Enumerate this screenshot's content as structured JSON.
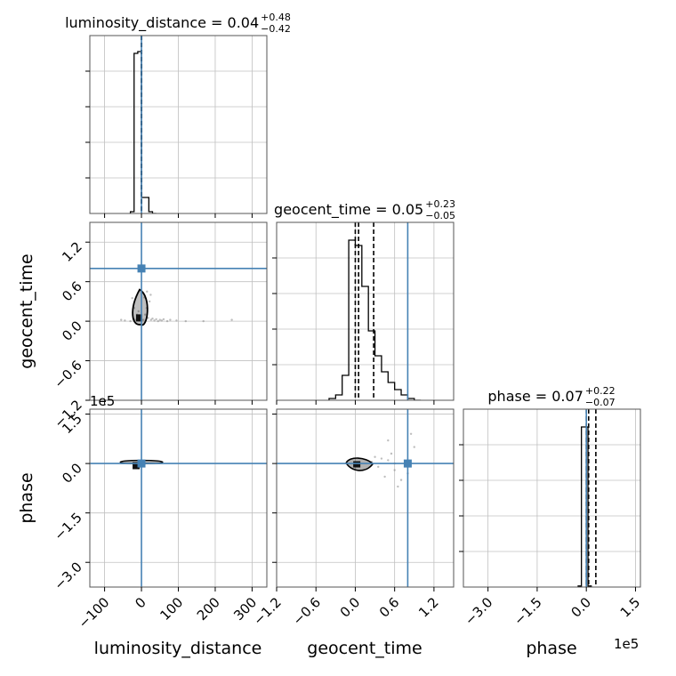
{
  "chart_data": {
    "type": "corner",
    "parameters": [
      "luminosity_distance",
      "geocent_time",
      "phase"
    ],
    "truth": {
      "luminosity_distance": 0,
      "geocent_time": 0.8,
      "phase": 0
    },
    "titles": [
      {
        "param": "luminosity_distance",
        "text": "luminosity_distance = 0.04",
        "upper": "+0.48",
        "lower": "−0.42"
      },
      {
        "param": "geocent_time",
        "text": "geocent_time = 0.05",
        "upper": "+0.23",
        "lower": "−0.05"
      },
      {
        "param": "phase",
        "text": "phase = 0.07",
        "upper": "+0.22",
        "lower": "−0.07"
      }
    ],
    "axes": {
      "luminosity_distance": {
        "range": [
          -140,
          340
        ],
        "ticks": [
          -100,
          0,
          100,
          200,
          300
        ],
        "tick_labels": [
          "−100",
          "0",
          "100",
          "200",
          "300"
        ]
      },
      "geocent_time": {
        "range": [
          -1.2,
          1.5
        ],
        "ticks": [
          -1.2,
          -0.6,
          0.0,
          0.6,
          1.2
        ],
        "tick_labels": [
          "−1.2",
          "−0.6",
          "0.0",
          "0.6",
          "1.2"
        ]
      },
      "phase": {
        "range": [
          -3.75,
          1.65
        ],
        "ticks": [
          -3.0,
          -1.5,
          0.0,
          1.5
        ],
        "tick_labels": [
          "−3.0",
          "−1.5",
          "0.0",
          "1.5"
        ],
        "offset": "1e5"
      }
    },
    "histograms": {
      "luminosity_distance": {
        "bins": [
          -30,
          -20,
          -10,
          0,
          10,
          20,
          30,
          40
        ],
        "counts": [
          0.5,
          45,
          45.5,
          4.5,
          4.5,
          0.5,
          0
        ]
      },
      "geocent_time": {
        "bins": [
          -0.4,
          -0.3,
          -0.2,
          -0.1,
          0.0,
          0.1,
          0.2,
          0.3,
          0.4,
          0.5,
          0.6,
          0.7,
          0.8,
          0.9,
          1.0
        ],
        "counts": [
          0.5,
          1.5,
          7,
          45,
          43.5,
          32,
          19.5,
          12.5,
          8,
          5,
          3,
          1.5,
          0.5,
          0
        ]
      },
      "phase": {
        "bins": [
          -0.25,
          -0.15,
          -0.05,
          0.05,
          0.15
        ],
        "counts": [
          0.3,
          45,
          45,
          0.3
        ]
      }
    },
    "quantile_lines": {
      "luminosity_distance": [
        -0.38,
        0.04,
        0.52
      ],
      "geocent_time": [
        0.0,
        0.05,
        0.28
      ],
      "phase": [
        0.0,
        0.07,
        0.29
      ]
    },
    "histogram_ylim": [
      0,
      50
    ],
    "scatter_points": [
      [
        -55,
        0.02
      ],
      [
        -45,
        0.01
      ],
      [
        -30,
        0.0
      ],
      [
        -22,
        0.04
      ],
      [
        -18,
        0.02
      ],
      [
        -12,
        0.1
      ],
      [
        -8,
        0.15
      ],
      [
        -5,
        0.05
      ],
      [
        5,
        0.02
      ],
      [
        10,
        0.1
      ],
      [
        14,
        0.2
      ],
      [
        18,
        0.05
      ],
      [
        22,
        0.3
      ],
      [
        26,
        0.02
      ],
      [
        30,
        0.04
      ],
      [
        35,
        0.01
      ],
      [
        40,
        0.03
      ],
      [
        45,
        0.0
      ],
      [
        50,
        0.02
      ],
      [
        55,
        0.01
      ],
      [
        60,
        0.03
      ],
      [
        70,
        0.0
      ],
      [
        78,
        0.02
      ],
      [
        95,
        0.01
      ],
      [
        120,
        0.0
      ],
      [
        168,
        0.0
      ],
      [
        245,
        0.02
      ],
      [
        -25,
        0.35
      ],
      [
        -20,
        0.2
      ],
      [
        15,
        0.45
      ],
      [
        25,
        0.4
      ],
      [
        8,
        0.36
      ]
    ],
    "scatter_points_2": [
      [
        0.3,
        0.2
      ],
      [
        0.5,
        0.1
      ],
      [
        0.6,
        -0.2
      ],
      [
        0.65,
        -0.7
      ],
      [
        0.55,
        0.3
      ],
      [
        0.9,
        0.5
      ],
      [
        0.85,
        0.9
      ],
      [
        0.45,
        -0.4
      ],
      [
        0.7,
        -0.5
      ],
      [
        0.35,
        -0.1
      ],
      [
        0.6,
        0.0
      ],
      [
        0.8,
        -0.3
      ],
      [
        0.5,
        0.7
      ],
      [
        0.25,
        0.05
      ],
      [
        0.4,
        0.15
      ]
    ]
  }
}
